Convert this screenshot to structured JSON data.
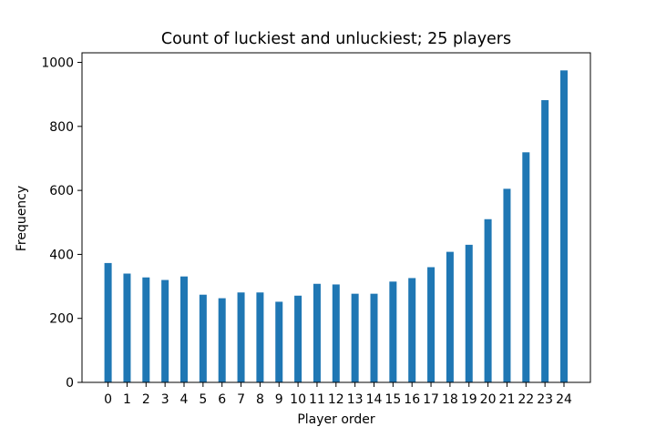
{
  "chart_data": {
    "type": "bar",
    "title": "Count of luckiest and unluckiest; 25 players",
    "xlabel": "Player order",
    "ylabel": "Frequency",
    "categories": [
      "0",
      "1",
      "2",
      "3",
      "4",
      "5",
      "6",
      "7",
      "8",
      "9",
      "10",
      "11",
      "12",
      "13",
      "14",
      "15",
      "16",
      "17",
      "18",
      "19",
      "20",
      "21",
      "22",
      "23",
      "24"
    ],
    "values": [
      373,
      340,
      328,
      320,
      331,
      274,
      263,
      281,
      281,
      252,
      271,
      308,
      306,
      277,
      277,
      315,
      326,
      360,
      408,
      430,
      510,
      605,
      719,
      882,
      975
    ],
    "ylim": [
      0,
      1030
    ],
    "yticks": [
      0,
      200,
      400,
      600,
      800,
      1000
    ],
    "bar_color": "#1f77b4",
    "grid": false,
    "legend": "none"
  }
}
